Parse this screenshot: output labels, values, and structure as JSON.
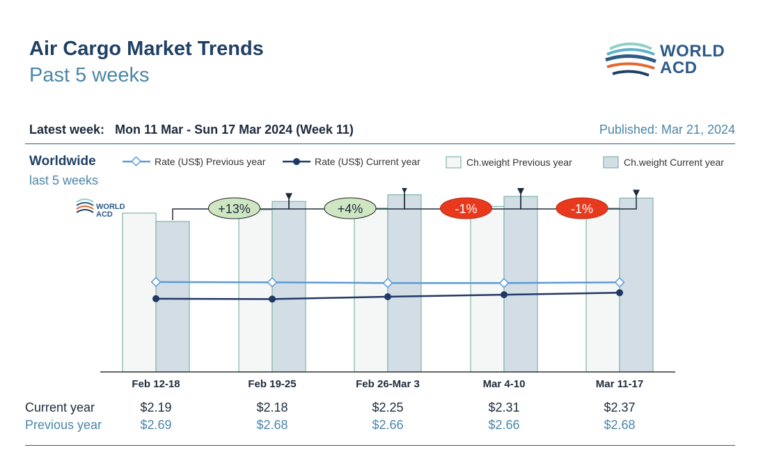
{
  "header": {
    "title": "Air Cargo Market Trends",
    "subtitle": "Past 5 weeks",
    "logo_line1": "WORLD",
    "logo_line2": "ACD",
    "latest_label": "Latest week:",
    "latest_value": "Mon 11 Mar - Sun 17 Mar 2024 (Week 11)",
    "published": "Published: Mar 21, 2024"
  },
  "section": {
    "title": "Worldwide",
    "subtitle": "last 5 weeks"
  },
  "legend": {
    "rate_prev": "Rate (US$) Previous year",
    "rate_cur": "Rate (US$) Current year",
    "weight_prev": "Ch.weight Previous year",
    "weight_cur": "Ch.weight Current year"
  },
  "watermark": {
    "line1": "WORLD",
    "line2": "ACD"
  },
  "colors": {
    "rate_prev": "#5b9bd5",
    "rate_cur": "#1f3864",
    "bar_prev_fill": "#f5f6f6",
    "bar_cur_fill": "#d3dde6",
    "bar_border": "#7fb3a8",
    "pos_bubble": "#cfe6c3",
    "neg_bubble": "#e8391e"
  },
  "chart_data": {
    "type": "bar",
    "categories": [
      "Feb 12-18",
      "Feb 19-25",
      "Feb 26-Mar 3",
      "Mar 4-10",
      "Mar 11-17"
    ],
    "series": [
      {
        "name": "Ch.weight Previous year",
        "type": "bar",
        "values": [
          95,
          97,
          98,
          99,
          98
        ]
      },
      {
        "name": "Ch.weight Current year",
        "type": "bar",
        "values": [
          90,
          102,
          106,
          105,
          104
        ]
      },
      {
        "name": "Rate (US$) Previous year",
        "type": "line",
        "values": [
          2.69,
          2.68,
          2.66,
          2.66,
          2.68
        ]
      },
      {
        "name": "Rate (US$) Current year",
        "type": "line",
        "values": [
          2.19,
          2.18,
          2.25,
          2.31,
          2.37
        ]
      }
    ],
    "changes": [
      "+13%",
      "+4%",
      "-1%",
      "-1%"
    ],
    "rows": {
      "current_label": "Current year",
      "previous_label": "Previous year",
      "current": [
        "$2.19",
        "$2.18",
        "$2.25",
        "$2.31",
        "$2.37"
      ],
      "previous": [
        "$2.69",
        "$2.68",
        "$2.66",
        "$2.66",
        "$2.68"
      ]
    },
    "bar_ylim": [
      0,
      110
    ],
    "rate_ylim": [
      0,
      5.5
    ]
  }
}
